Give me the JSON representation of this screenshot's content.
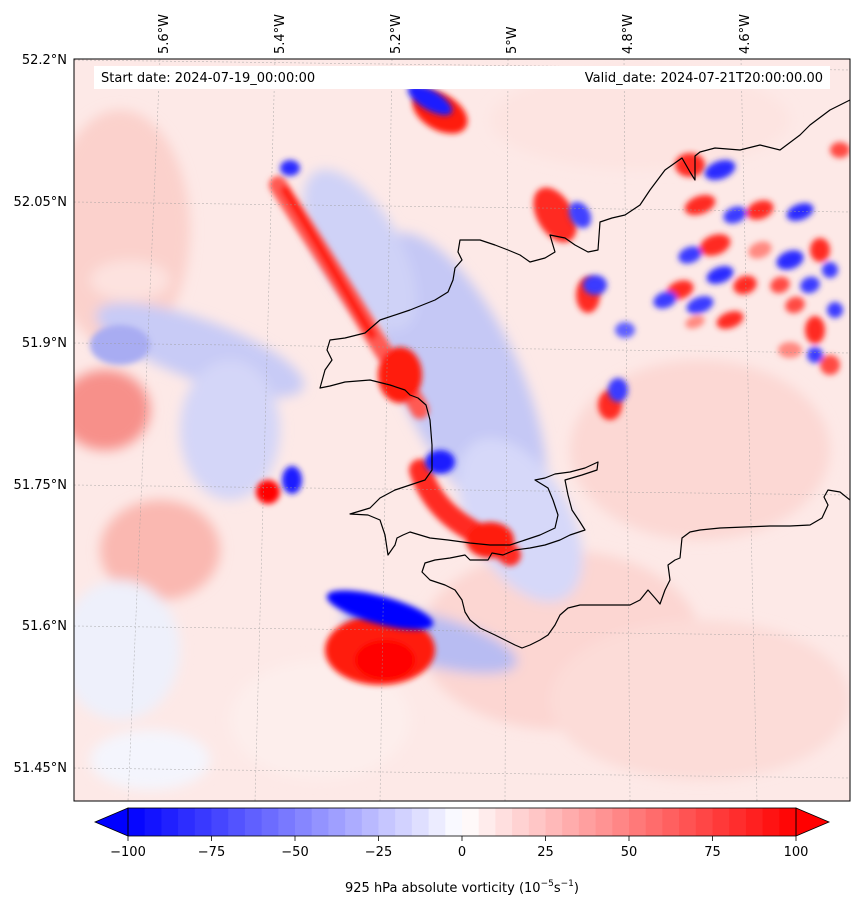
{
  "map": {
    "start_date": "Start date: 2024-07-19_00:00:00",
    "valid_date": "Valid_date: 2024-07-21T20:00:00.00",
    "lon_labels": [
      "5.6°W",
      "5.4°W",
      "5.2°W",
      "5°W",
      "4.8°W",
      "4.6°W"
    ],
    "lat_labels": [
      "52.2°N",
      "52.05°N",
      "51.9°N",
      "51.75°N",
      "51.6°N",
      "51.45°N"
    ],
    "lon_values": [
      -5.6,
      -5.4,
      -5.2,
      -5.0,
      -4.8,
      -4.6
    ],
    "lat_values": [
      52.2,
      52.05,
      51.9,
      51.75,
      51.6,
      51.45
    ],
    "lon_range": [
      -5.72,
      -4.48
    ],
    "lat_range": [
      51.42,
      52.2
    ],
    "field": "925 hPa absolute vorticity",
    "colormap": "bwr",
    "colors": {
      "negative": "#0000ff",
      "zero": "#ffffff",
      "positive": "#ff0000"
    }
  },
  "colorbar": {
    "label_prefix": "925 hPa absolute vorticity (10",
    "label_exp1": "−5",
    "label_mid": "s",
    "label_exp2": "−1",
    "label_suffix": ")",
    "ticks": [
      "−100",
      "−75",
      "−50",
      "−25",
      "0",
      "25",
      "50",
      "75",
      "100"
    ],
    "tick_values": [
      -100,
      -75,
      -50,
      -25,
      0,
      25,
      50,
      75,
      100
    ],
    "range": [
      -100,
      100
    ],
    "extend": "both"
  }
}
